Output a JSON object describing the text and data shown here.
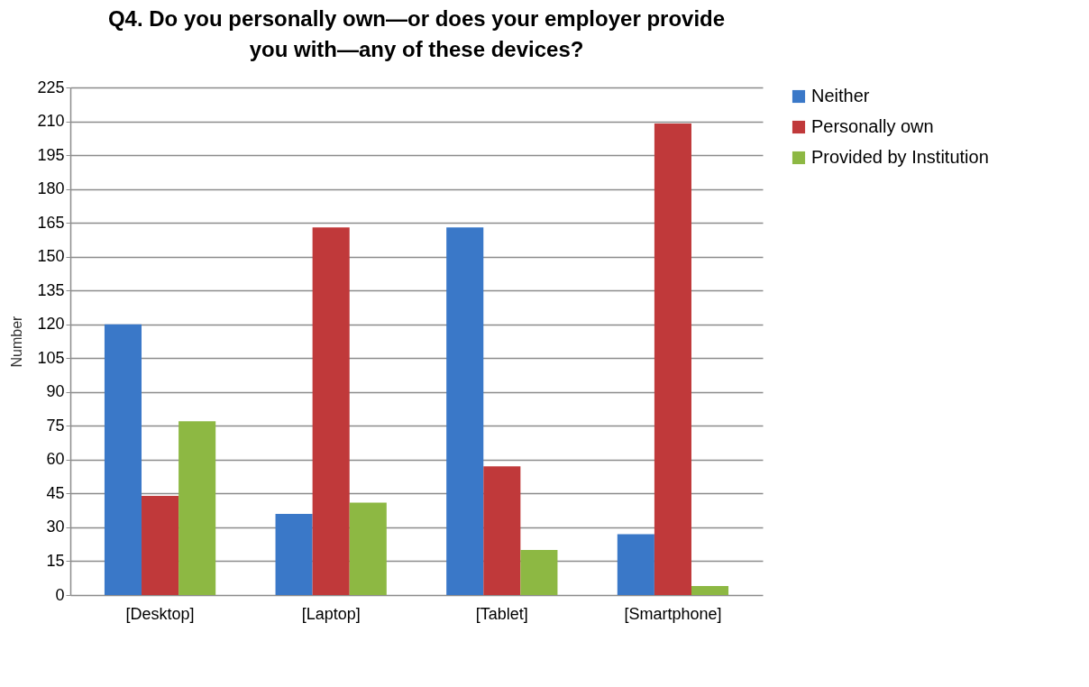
{
  "chart_data": {
    "type": "bar",
    "title": "Q4. Do you personally own—or does your employer provide you with—any of these devices?",
    "ylabel": "Number",
    "categories": [
      "[Desktop]",
      "[Laptop]",
      "[Tablet]",
      "[Smartphone]"
    ],
    "series": [
      {
        "name": "Neither",
        "color": "#3a78c8",
        "values": [
          120,
          36,
          163,
          27
        ]
      },
      {
        "name": "Personally own",
        "color": "#c0393a",
        "values": [
          44,
          163,
          57,
          209
        ]
      },
      {
        "name": "Provided by Institution",
        "color": "#8db843",
        "values": [
          77,
          41,
          20,
          4
        ]
      }
    ],
    "ylim": [
      0,
      225
    ],
    "yticks": [
      0,
      15,
      30,
      45,
      60,
      75,
      90,
      105,
      120,
      135,
      150,
      165,
      180,
      195,
      210,
      225
    ],
    "grid": "y",
    "legend": "right"
  }
}
